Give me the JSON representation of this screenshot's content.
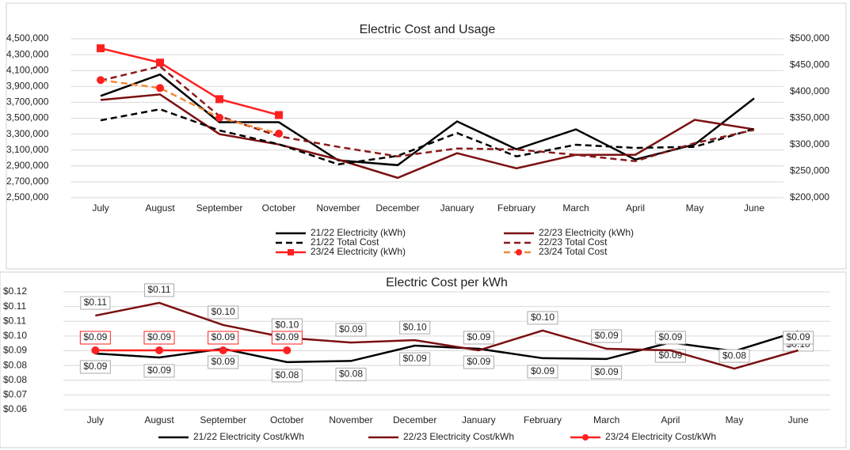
{
  "chart_data": [
    {
      "type": "line",
      "title": "Electric Cost and Usage",
      "categories": [
        "July",
        "August",
        "September",
        "October",
        "November",
        "December",
        "January",
        "February",
        "March",
        "April",
        "May",
        "June"
      ],
      "ylim": [
        2500000,
        4500000
      ],
      "yticks": [
        {
          "value": 2500000,
          "label": "2,500,000"
        },
        {
          "value": 2700000,
          "label": "2,700,000"
        },
        {
          "value": 2900000,
          "label": "2,900,000"
        },
        {
          "value": 3100000,
          "label": "3,100,000"
        },
        {
          "value": 3300000,
          "label": "3,300,000"
        },
        {
          "value": 3500000,
          "label": "3,500,000"
        },
        {
          "value": 3700000,
          "label": "3,700,000"
        },
        {
          "value": 3900000,
          "label": "3,900,000"
        },
        {
          "value": 4100000,
          "label": "4,100,000"
        },
        {
          "value": 4300000,
          "label": "4,300,000"
        },
        {
          "value": 4500000,
          "label": "4,500,000"
        }
      ],
      "y2lim": [
        200000,
        500000
      ],
      "y2ticks": [
        {
          "value": 200000,
          "label": "$200,000"
        },
        {
          "value": 250000,
          "label": "$250,000"
        },
        {
          "value": 300000,
          "label": "$300,000"
        },
        {
          "value": 350000,
          "label": "$350,000"
        },
        {
          "value": 400000,
          "label": "$400,000"
        },
        {
          "value": 450000,
          "label": "$450,000"
        },
        {
          "value": 500000,
          "label": "$500,000"
        }
      ],
      "grid": true,
      "series": [
        {
          "name": "21/22 Electricity (kWh)",
          "color": "#000000",
          "values": [
            3780000,
            4050000,
            3450000,
            3450000,
            2970000,
            2910000,
            3460000,
            3110000,
            3360000,
            2980000,
            3170000,
            3750000
          ]
        },
        {
          "name": "22/23 Electricity (kWh)",
          "color": "#7b1010",
          "values": [
            3730000,
            3800000,
            3300000,
            3170000,
            2980000,
            2750000,
            3060000,
            2870000,
            3040000,
            3040000,
            3480000,
            3360000
          ]
        },
        {
          "name": "21/22 Total Cost",
          "color": "#000000",
          "dash": true,
          "axis": "y2",
          "values": [
            346000,
            367000,
            327000,
            301000,
            263000,
            279000,
            322000,
            278000,
            300000,
            294000,
            296000,
            330000
          ]
        },
        {
          "name": "22/23 Total Cost",
          "color": "#8b1a1a",
          "dash": true,
          "axis": "y2",
          "values": [
            421000,
            448000,
            354000,
            316000,
            296000,
            278000,
            293000,
            291000,
            281000,
            269000,
            303000,
            328000
          ]
        },
        {
          "name": "23/24 Electricity (kWh)",
          "color": "#ff2020",
          "marker": "square",
          "values": [
            4380000,
            4200000,
            3740000,
            3540000,
            null,
            null,
            null,
            null,
            null,
            null,
            null,
            null
          ]
        },
        {
          "name": "23/24 Total Cost",
          "color": "#f08a3a",
          "dash": true,
          "marker": "circle",
          "marker_color": "#ff2020",
          "axis": "y2",
          "values": [
            422000,
            407000,
            351000,
            321000,
            null,
            null,
            null,
            null,
            null,
            null,
            null,
            null
          ]
        }
      ]
    },
    {
      "type": "line",
      "title": "Electric Cost per kWh",
      "categories": [
        "July",
        "August",
        "September",
        "October",
        "November",
        "December",
        "January",
        "February",
        "March",
        "April",
        "May",
        "June"
      ],
      "ylim": [
        0.06,
        0.12
      ],
      "yticks": [
        {
          "value": 0.06,
          "label": "$0.06"
        },
        {
          "value": 0.0675,
          "label": "$0.07"
        },
        {
          "value": 0.075,
          "label": "$0.08"
        },
        {
          "value": 0.0825,
          "label": "$0.08"
        },
        {
          "value": 0.09,
          "label": "$0.09"
        },
        {
          "value": 0.0975,
          "label": "$0.10"
        },
        {
          "value": 0.105,
          "label": "$0.11"
        },
        {
          "value": 0.1125,
          "label": "$0.11"
        },
        {
          "value": 0.12,
          "label": "$0.12"
        }
      ],
      "grid": true,
      "series": [
        {
          "name": "21/22 Electricity Cost/kWh",
          "color": "#000000",
          "values": [
            0.0886,
            0.0866,
            0.091,
            0.0842,
            0.0848,
            0.0926,
            0.091,
            0.0862,
            0.0858,
            0.0942,
            0.0898,
            0.0999
          ],
          "value_labels": [
            "$0.09",
            "$0.09",
            "$0.09",
            "$0.08",
            "$0.08",
            "$0.09",
            "$0.09",
            "$0.09",
            "$0.09",
            "$0.09",
            null,
            "$0.10"
          ]
        },
        {
          "name": "22/23 Electricity Cost/kWh",
          "color": "#7b1010",
          "values": [
            0.1079,
            0.1144,
            0.1031,
            0.0966,
            0.0942,
            0.0954,
            0.0902,
            0.1003,
            0.091,
            0.0902,
            0.0809,
            0.0902
          ],
          "value_labels": [
            "$0.11",
            "$0.11",
            "$0.10",
            "$0.10",
            "$0.09",
            "$0.10",
            "$0.09",
            "$0.10",
            "$0.09",
            "$0.09",
            "$0.08",
            "$0.09"
          ]
        },
        {
          "name": "23/24 Electricity Cost/kWh",
          "color": "#ff2020",
          "marker": "circle",
          "values": [
            0.0902,
            0.0902,
            0.0902,
            0.0902,
            null,
            null,
            null,
            null,
            null,
            null,
            null,
            null
          ],
          "value_labels": [
            "$0.09",
            "$0.09",
            "$0.09",
            "$0.09",
            null,
            null,
            null,
            null,
            null,
            null,
            null,
            null
          ]
        }
      ]
    }
  ]
}
